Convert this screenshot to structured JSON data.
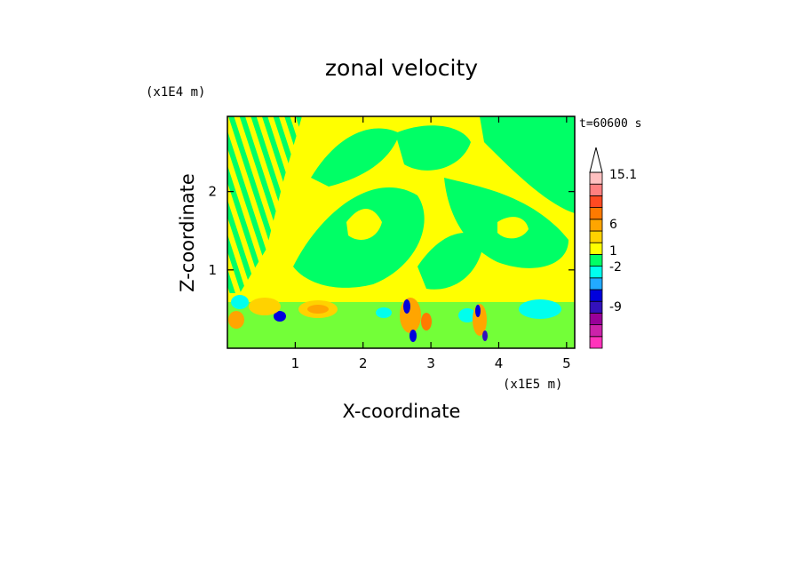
{
  "chart_data": {
    "type": "heatmap",
    "title": "zonal velocity",
    "xlabel": "X-coordinate",
    "ylabel": "Z-coordinate",
    "x_unit": "(x1E5 m)",
    "y_unit": "(x1E4 m)",
    "time_label": "t=60600 s",
    "x_ticks": [
      1,
      2,
      3,
      4,
      5
    ],
    "y_ticks": [
      1,
      2
    ],
    "xlim": [
      0,
      5.12
    ],
    "ylim": [
      0,
      2.96
    ],
    "colorbar": {
      "labels": [
        "15.1",
        "6",
        "1",
        "-2",
        "-9"
      ],
      "levels": [
        {
          "color": "#ff33bb"
        },
        {
          "color": "#cc22aa"
        },
        {
          "color": "#990099"
        },
        {
          "color": "#3311bb"
        },
        {
          "color": "#0000dd"
        },
        {
          "color": "#22aaff"
        },
        {
          "color": "#00ffee"
        },
        {
          "color": "#00ff66"
        },
        {
          "color": "#ffff00"
        },
        {
          "color": "#ffd200"
        },
        {
          "color": "#ffa500"
        },
        {
          "color": "#ff7a00"
        },
        {
          "color": "#ff4a22"
        },
        {
          "color": "#ff8080"
        },
        {
          "color": "#ffc0c0"
        }
      ]
    },
    "background_level_color": "#ffff00",
    "dominant_secondary_color": "#00ff66"
  }
}
